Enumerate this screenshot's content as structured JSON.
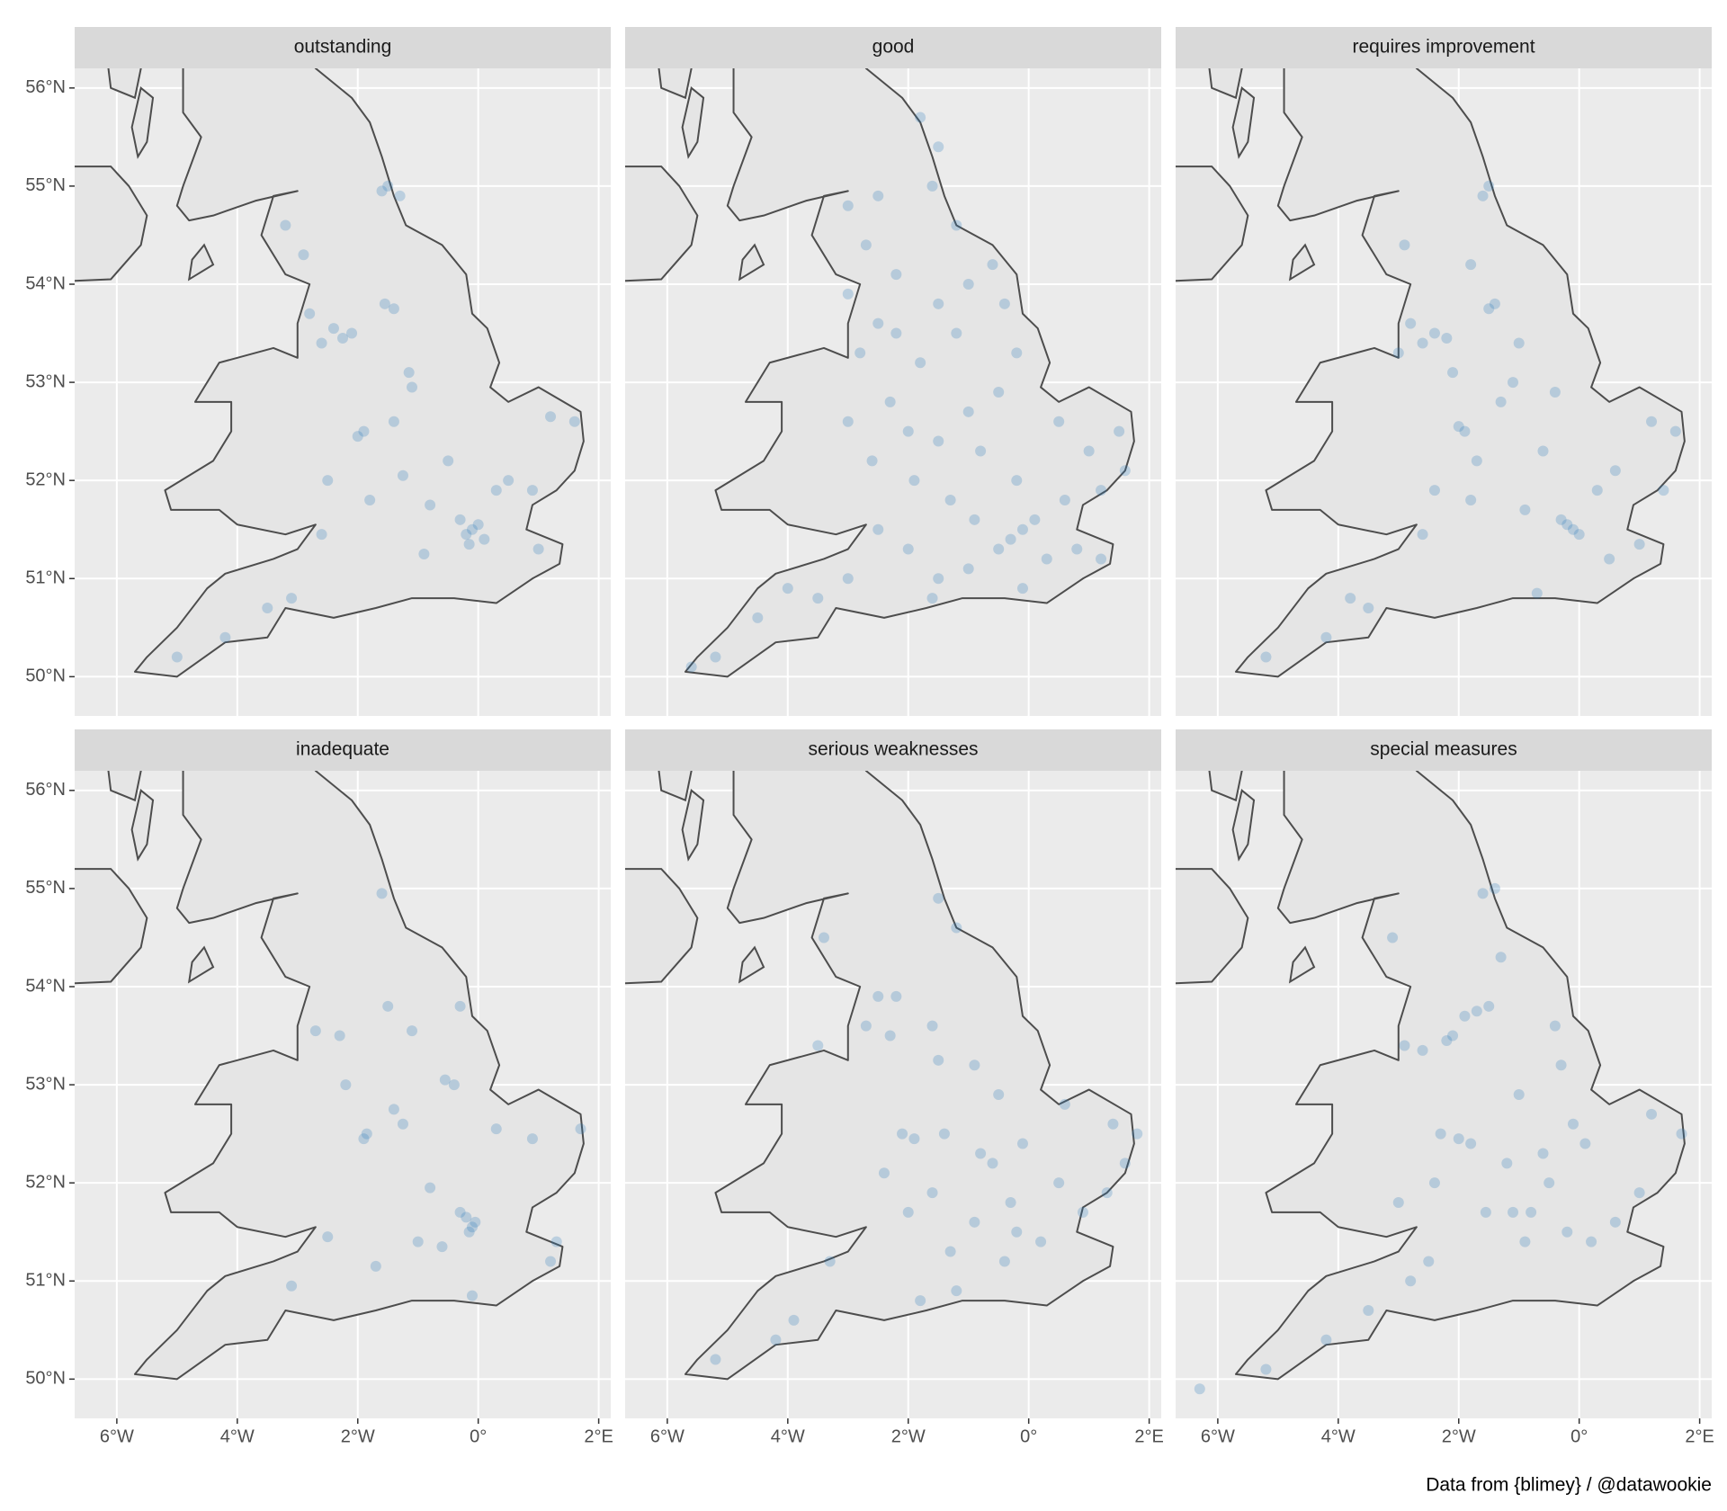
{
  "chart_data": {
    "type": "scatter",
    "caption": "Data from {blimey} / @datawookie",
    "color": "#2b7bba",
    "opacity": 0.25,
    "grid": true,
    "xlim": [
      -6.7,
      2.2
    ],
    "ylim": [
      49.6,
      56.2
    ],
    "xticks": [
      {
        "value": -6,
        "label": "6°W"
      },
      {
        "value": -4,
        "label": "4°W"
      },
      {
        "value": -2,
        "label": "2°W"
      },
      {
        "value": 0,
        "label": "0°"
      },
      {
        "value": 2,
        "label": "2°E"
      }
    ],
    "yticks": [
      {
        "value": 50,
        "label": "50°N"
      },
      {
        "value": 51,
        "label": "51°N"
      },
      {
        "value": 52,
        "label": "52°N"
      },
      {
        "value": 53,
        "label": "53°N"
      },
      {
        "value": 54,
        "label": "54°N"
      },
      {
        "value": 55,
        "label": "55°N"
      },
      {
        "value": 56,
        "label": "56°N"
      }
    ],
    "panels": [
      {
        "title": "outstanding",
        "x": [
          -0.1,
          -0.2,
          0.0,
          -0.3,
          0.1,
          -0.15,
          -2.25,
          -2.4,
          -2.1,
          -2.6,
          -1.55,
          -1.4,
          -1.9,
          -2.0,
          -1.6,
          -1.5,
          -1.3,
          -2.8,
          -1.1,
          -0.5,
          0.5,
          1.2,
          1.0,
          -2.6,
          -3.5,
          -4.2,
          -5.0,
          -1.8,
          -2.5,
          -0.8,
          0.3,
          -1.4,
          -2.9,
          -1.15,
          -1.25,
          0.9,
          -3.1,
          -0.9,
          -3.2,
          1.6
        ],
        "y": [
          51.5,
          51.45,
          51.55,
          51.6,
          51.4,
          51.35,
          53.45,
          53.55,
          53.5,
          53.4,
          53.8,
          53.75,
          52.5,
          52.45,
          54.95,
          55.0,
          54.9,
          53.7,
          52.95,
          52.2,
          52.0,
          52.65,
          51.3,
          51.45,
          50.7,
          50.4,
          50.2,
          51.8,
          52.0,
          51.75,
          51.9,
          52.6,
          54.3,
          53.1,
          52.05,
          51.9,
          50.8,
          51.25,
          54.6,
          52.6
        ]
      },
      {
        "title": "good",
        "x": [
          -0.1,
          -0.3,
          0.1,
          -0.5,
          0.3,
          0.8,
          1.2,
          -1.0,
          -1.5,
          -2.0,
          -2.5,
          -3.0,
          -3.5,
          -4.0,
          -4.5,
          -5.2,
          -5.6,
          -2.2,
          -2.5,
          -2.8,
          -1.5,
          -1.2,
          -1.8,
          -2.0,
          -1.5,
          -2.3,
          -1.0,
          -0.5,
          -0.2,
          0.5,
          1.0,
          1.5,
          1.6,
          1.2,
          0.6,
          -0.2,
          -0.8,
          -1.3,
          -1.9,
          -2.6,
          -3.0,
          -3.0,
          -2.7,
          -3.0,
          -2.5,
          -1.6,
          -1.5,
          -1.8,
          -1.2,
          -0.6,
          -0.4,
          -1.0,
          -2.2,
          -0.9,
          -1.6,
          -0.1
        ],
        "y": [
          51.5,
          51.4,
          51.6,
          51.3,
          51.2,
          51.3,
          51.2,
          51.1,
          51.0,
          51.3,
          51.5,
          51.0,
          50.8,
          50.9,
          50.6,
          50.2,
          50.1,
          53.5,
          53.6,
          53.3,
          53.8,
          53.5,
          53.2,
          52.5,
          52.4,
          52.8,
          52.7,
          52.9,
          53.3,
          52.6,
          52.3,
          52.5,
          52.1,
          51.9,
          51.8,
          52.0,
          52.3,
          51.8,
          52.0,
          52.2,
          52.6,
          53.9,
          54.4,
          54.8,
          54.9,
          55.0,
          55.4,
          55.7,
          54.6,
          54.2,
          53.8,
          54.0,
          54.1,
          51.6,
          50.8,
          50.9
        ]
      },
      {
        "title": "requires improvement",
        "x": [
          -0.1,
          -0.2,
          0.0,
          -0.3,
          -2.2,
          -2.4,
          -2.6,
          -1.5,
          -1.4,
          -1.9,
          -2.0,
          -1.6,
          -1.5,
          -2.8,
          -3.0,
          -1.1,
          -0.6,
          0.6,
          1.2,
          1.4,
          1.0,
          -2.6,
          -3.5,
          -4.2,
          -5.2,
          -1.8,
          -2.4,
          -0.9,
          0.3,
          -1.3,
          -2.9,
          -0.4,
          -1.0,
          -3.8,
          -1.7,
          1.6,
          0.5,
          -1.8,
          -0.7,
          -2.1
        ],
        "y": [
          51.5,
          51.55,
          51.45,
          51.6,
          53.45,
          53.5,
          53.4,
          53.75,
          53.8,
          52.5,
          52.55,
          54.9,
          55.0,
          53.6,
          53.3,
          53.0,
          52.3,
          52.1,
          52.6,
          51.9,
          51.35,
          51.45,
          50.7,
          50.4,
          50.2,
          51.8,
          51.9,
          51.7,
          51.9,
          52.8,
          54.4,
          52.9,
          53.4,
          50.8,
          52.2,
          52.5,
          51.2,
          54.2,
          50.85,
          53.1
        ]
      },
      {
        "title": "inadequate",
        "x": [
          -0.1,
          -0.15,
          -0.05,
          -0.2,
          -0.3,
          -2.2,
          -1.9,
          -1.85,
          -2.3,
          -1.5,
          -1.6,
          -1.25,
          -0.3,
          -0.55,
          -1.1,
          -2.7,
          -1.4,
          -1.7,
          -0.8,
          -0.6,
          0.3,
          0.9,
          1.2,
          1.3,
          1.7,
          -2.5,
          -3.1,
          -1.0,
          -0.1,
          -0.4
        ],
        "y": [
          51.55,
          51.5,
          51.6,
          51.65,
          51.7,
          53.0,
          52.45,
          52.5,
          53.5,
          53.8,
          54.95,
          52.6,
          53.8,
          53.05,
          53.55,
          53.55,
          52.75,
          51.15,
          51.95,
          51.35,
          52.55,
          52.45,
          51.2,
          51.4,
          52.55,
          51.45,
          50.95,
          51.4,
          50.85,
          53.0
        ]
      },
      {
        "title": "serious weaknesses",
        "x": [
          -2.1,
          -1.9,
          -2.3,
          -1.6,
          -1.2,
          -2.7,
          -2.5,
          -1.5,
          -3.4,
          -2.2,
          -0.9,
          -0.5,
          -0.6,
          0.6,
          0.9,
          1.3,
          1.6,
          1.8,
          -0.2,
          0.2,
          -0.3,
          -0.9,
          -1.3,
          -1.6,
          -2.0,
          -2.4,
          -3.3,
          -3.9,
          -4.2,
          -5.2,
          -1.4,
          -0.8,
          -0.4,
          -1.2,
          -1.8,
          0.5,
          1.4,
          -0.1,
          -1.5,
          -3.5
        ],
        "y": [
          52.5,
          52.45,
          53.5,
          53.6,
          54.6,
          53.6,
          53.9,
          54.9,
          54.5,
          53.9,
          53.2,
          52.9,
          52.2,
          52.8,
          51.7,
          51.9,
          52.2,
          52.5,
          51.5,
          51.4,
          51.8,
          51.6,
          51.3,
          51.9,
          51.7,
          52.1,
          51.2,
          50.6,
          50.4,
          50.2,
          52.5,
          52.3,
          51.2,
          50.9,
          50.8,
          52.0,
          52.6,
          52.4,
          53.25,
          53.4
        ]
      },
      {
        "title": "special measures",
        "x": [
          -2.2,
          -2.1,
          -2.0,
          -2.3,
          -1.8,
          -1.9,
          -1.7,
          -1.5,
          -1.4,
          -2.6,
          -2.9,
          -3.1,
          -1.3,
          -1.0,
          -0.4,
          -0.6,
          -0.8,
          -0.2,
          0.2,
          0.6,
          1.0,
          1.2,
          1.7,
          -0.1,
          -0.5,
          -1.1,
          -2.5,
          -2.8,
          -3.5,
          -4.2,
          -5.2,
          -6.3,
          -1.6,
          -0.9,
          0.1,
          -0.3,
          -1.2,
          -2.4,
          -3.0,
          -1.55
        ],
        "y": [
          53.45,
          53.5,
          52.45,
          52.5,
          52.4,
          53.7,
          53.75,
          53.8,
          55.0,
          53.35,
          53.4,
          54.5,
          54.3,
          52.9,
          53.6,
          52.3,
          51.7,
          51.5,
          51.4,
          51.6,
          51.9,
          52.7,
          52.5,
          52.6,
          52.0,
          51.7,
          51.2,
          51.0,
          50.7,
          50.4,
          50.1,
          49.9,
          54.95,
          51.4,
          52.4,
          53.2,
          52.2,
          52.0,
          51.8,
          51.7
        ]
      }
    ]
  }
}
